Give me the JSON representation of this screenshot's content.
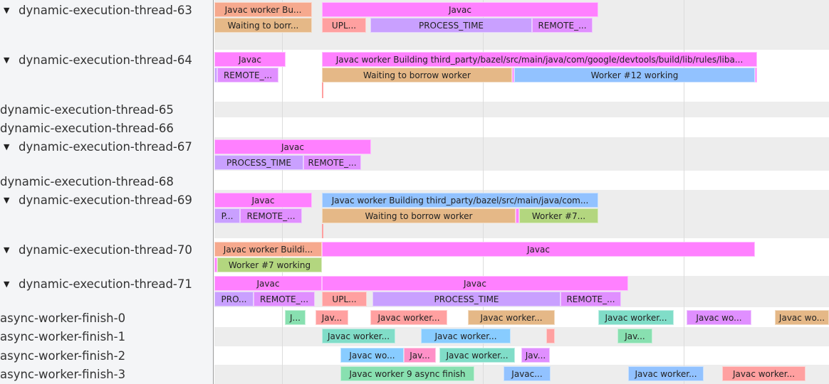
{
  "colors": {
    "pink": "#ff80ff",
    "salmon": "#f6a98e",
    "tan": "#e5b887",
    "lightred": "#ffa0a0",
    "lavender": "#c9a0ff",
    "remote": "#e08fff",
    "blue": "#92c2ff",
    "green": "#b3d67f",
    "teal": "#80ddc8",
    "lightblue": "#88ccff",
    "green2": "#88e0b0",
    "pink2": "#ff90c8"
  },
  "tracks": [
    {
      "name": "dynamic-execution-thread-63",
      "expanded": true
    },
    {
      "name": "dynamic-execution-thread-64",
      "expanded": true
    },
    {
      "name": "dynamic-execution-thread-65",
      "expanded": false
    },
    {
      "name": "dynamic-execution-thread-66",
      "expanded": false
    },
    {
      "name": "dynamic-execution-thread-67",
      "expanded": true
    },
    {
      "name": "dynamic-execution-thread-68",
      "expanded": false
    },
    {
      "name": "dynamic-execution-thread-69",
      "expanded": true
    },
    {
      "name": "dynamic-execution-thread-70",
      "expanded": true
    },
    {
      "name": "dynamic-execution-thread-71",
      "expanded": true
    },
    {
      "name": "async-worker-finish-0",
      "expanded": false
    },
    {
      "name": "async-worker-finish-1",
      "expanded": false
    },
    {
      "name": "async-worker-finish-2",
      "expanded": false
    },
    {
      "name": "async-worker-finish-3",
      "expanded": false
    }
  ],
  "expand_icon": "triangle-down-icon",
  "slices": [
    {
      "track": 0,
      "label": "Javac worker Bu...",
      "color": "salmon"
    },
    {
      "track": 0,
      "label": "Javac",
      "color": "pink"
    },
    {
      "track": 0,
      "label": "Waiting to borr...",
      "color": "tan"
    },
    {
      "track": 0,
      "label": "UPL...",
      "color": "lightred"
    },
    {
      "track": 0,
      "label": "PROCESS_TIME",
      "color": "lavender"
    },
    {
      "track": 0,
      "label": "REMOTE_...",
      "color": "remote"
    },
    {
      "track": 1,
      "label": "Javac",
      "color": "pink"
    },
    {
      "track": 1,
      "label": "Javac worker Building third_party/bazel/src/main/java/com/google/devtools/build/lib/rules/liba...",
      "color": "pink"
    },
    {
      "track": 1,
      "label": "",
      "color": "lavender"
    },
    {
      "track": 1,
      "label": "REMOTE_...",
      "color": "remote"
    },
    {
      "track": 1,
      "label": "Waiting to borrow worker",
      "color": "tan"
    },
    {
      "track": 1,
      "label": "",
      "color": "pink"
    },
    {
      "track": 1,
      "label": "Worker #12 working",
      "color": "blue"
    },
    {
      "track": 1,
      "label": "",
      "color": "pink"
    },
    {
      "track": 4,
      "label": "Javac",
      "color": "pink"
    },
    {
      "track": 4,
      "label": "PROCESS_TIME",
      "color": "lavender"
    },
    {
      "track": 4,
      "label": "REMOTE_...",
      "color": "remote"
    },
    {
      "track": 6,
      "label": "Javac",
      "color": "pink"
    },
    {
      "track": 6,
      "label": "Javac worker Building third_party/bazel/src/main/java/com...",
      "color": "blue"
    },
    {
      "track": 6,
      "label": "P...",
      "color": "lavender"
    },
    {
      "track": 6,
      "label": "REMOTE_...",
      "color": "remote"
    },
    {
      "track": 6,
      "label": "Waiting to borrow worker",
      "color": "tan"
    },
    {
      "track": 6,
      "label": "",
      "color": "pink"
    },
    {
      "track": 6,
      "label": "Worker #7...",
      "color": "green"
    },
    {
      "track": 7,
      "label": "Javac worker Buildi...",
      "color": "salmon"
    },
    {
      "track": 7,
      "label": "Javac",
      "color": "pink"
    },
    {
      "track": 7,
      "label": "",
      "color": "pink"
    },
    {
      "track": 7,
      "label": "Worker #7 working",
      "color": "green"
    },
    {
      "track": 8,
      "label": "Javac",
      "color": "pink"
    },
    {
      "track": 8,
      "label": "Javac",
      "color": "pink"
    },
    {
      "track": 8,
      "label": "PRO...",
      "color": "lavender"
    },
    {
      "track": 8,
      "label": "REMOTE_...",
      "color": "remote"
    },
    {
      "track": 8,
      "label": "UPL...",
      "color": "lightred"
    },
    {
      "track": 8,
      "label": "PROCESS_TIME",
      "color": "lavender"
    },
    {
      "track": 8,
      "label": "REMOTE_...",
      "color": "remote"
    },
    {
      "track": 9,
      "label": "J...",
      "color": "green2"
    },
    {
      "track": 9,
      "label": "Jav...",
      "color": "lightred"
    },
    {
      "track": 9,
      "label": "Javac worker...",
      "color": "lightred"
    },
    {
      "track": 9,
      "label": "Javac worker...",
      "color": "tan"
    },
    {
      "track": 9,
      "label": "Javac worker...",
      "color": "teal"
    },
    {
      "track": 9,
      "label": "Javac wo...",
      "color": "remote"
    },
    {
      "track": 9,
      "label": "Javac wo...",
      "color": "tan"
    },
    {
      "track": 10,
      "label": "Javac worker...",
      "color": "teal"
    },
    {
      "track": 10,
      "label": "Javac worker...",
      "color": "lightblue"
    },
    {
      "track": 10,
      "label": "",
      "color": "lightred"
    },
    {
      "track": 10,
      "label": "Jav...",
      "color": "green2"
    },
    {
      "track": 11,
      "label": "Javac wo...",
      "color": "lightblue"
    },
    {
      "track": 11,
      "label": "Jav...",
      "color": "pink2"
    },
    {
      "track": 11,
      "label": "Javac worker...",
      "color": "teal"
    },
    {
      "track": 11,
      "label": "Jav...",
      "color": "remote"
    },
    {
      "track": 12,
      "label": "Javac worker 9 async finish",
      "color": "green2"
    },
    {
      "track": 12,
      "label": "Javac...",
      "color": "blue"
    },
    {
      "track": 12,
      "label": "Javac worker...",
      "color": "blue"
    },
    {
      "track": 12,
      "label": "Javac worker...",
      "color": "lightred"
    }
  ]
}
